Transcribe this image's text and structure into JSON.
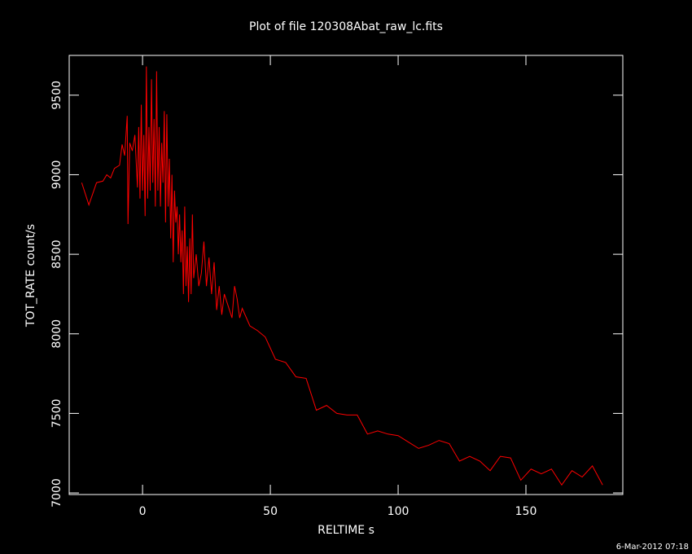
{
  "chart_data": {
    "type": "line",
    "title": "Plot of file 120308Abat_raw_lc.fits",
    "xlabel": "RELTIME  s",
    "ylabel": "TOT_RATE  count/s",
    "timestamp": "6-Mar-2012 07:18",
    "color": "#ff0000",
    "axis_color": "#ffffff",
    "background": "#000000",
    "xlim": [
      -28.7,
      187.9
    ],
    "ylim": [
      6990,
      9750
    ],
    "xticks": [
      0,
      50,
      100,
      150
    ],
    "yticks": [
      7000,
      7500,
      8000,
      8500,
      9000,
      9500
    ],
    "x": [
      -23.8,
      -21,
      -18,
      -15.5,
      -14,
      -12.5,
      -11,
      -9,
      -8,
      -7,
      -6,
      -5.7,
      -5,
      -4,
      -3,
      -2,
      -1.5,
      -1,
      -0.5,
      0,
      0.5,
      1,
      1.5,
      2,
      2.5,
      3,
      3.5,
      4,
      4.5,
      5,
      5.5,
      6,
      6.5,
      7,
      7.5,
      8,
      8.5,
      9,
      9.5,
      10,
      10.5,
      11,
      11.5,
      12,
      12.5,
      13,
      13.5,
      14,
      14.5,
      15,
      15.5,
      16,
      16.5,
      17,
      17.5,
      18,
      18.5,
      19,
      19.5,
      20,
      21,
      22,
      23,
      24,
      25,
      26,
      27,
      28,
      29,
      30,
      31,
      32,
      33,
      34,
      35,
      36,
      37,
      38,
      39,
      42,
      45,
      48,
      52,
      56,
      60,
      64,
      68,
      72,
      76,
      80,
      84,
      88,
      92,
      96,
      100,
      104,
      108,
      112,
      116,
      120,
      124,
      128,
      132,
      136,
      140,
      144,
      148,
      152,
      156,
      160,
      164,
      168,
      172,
      176,
      180
    ],
    "values": [
      8950,
      8810,
      8950,
      8960,
      9000,
      8980,
      9040,
      9060,
      9190,
      9120,
      9370,
      8690,
      9200,
      9150,
      9250,
      8920,
      9300,
      8850,
      9440,
      8900,
      9250,
      8740,
      9680,
      8850,
      9300,
      8900,
      9600,
      8950,
      9350,
      8800,
      9650,
      8900,
      9300,
      8800,
      9200,
      8950,
      9400,
      8700,
      9380,
      8800,
      9100,
      8600,
      9000,
      8450,
      8900,
      8700,
      8800,
      8500,
      8750,
      8450,
      8650,
      8250,
      8800,
      8300,
      8550,
      8200,
      8600,
      8250,
      8750,
      8350,
      8500,
      8300,
      8380,
      8580,
      8300,
      8480,
      8250,
      8450,
      8150,
      8300,
      8120,
      8250,
      8200,
      8150,
      8100,
      8300,
      8220,
      8100,
      8160,
      8050,
      8020,
      7980,
      7840,
      7820,
      7730,
      7720,
      7520,
      7550,
      7500,
      7490,
      7490,
      7370,
      7390,
      7370,
      7360,
      7320,
      7280,
      7300,
      7330,
      7310,
      7200,
      7230,
      7200,
      7140,
      7230,
      7220,
      7080,
      7150,
      7120,
      7150,
      7050,
      7140,
      7100,
      7170,
      7050
    ]
  }
}
